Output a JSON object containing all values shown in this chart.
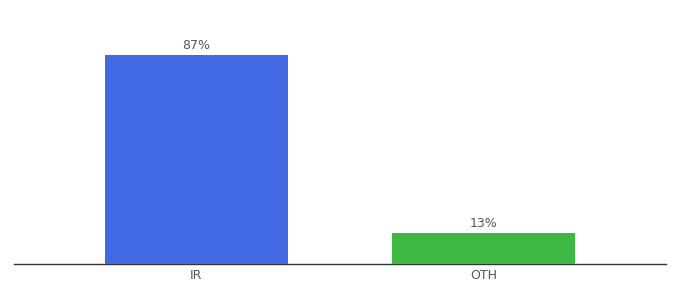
{
  "categories": [
    "IR",
    "OTH"
  ],
  "values": [
    87,
    13
  ],
  "bar_colors": [
    "#4169E1",
    "#3CB843"
  ],
  "label_texts": [
    "87%",
    "13%"
  ],
  "background_color": "#ffffff",
  "ylim": [
    0,
    100
  ],
  "bar_width": 0.28,
  "label_fontsize": 9,
  "tick_fontsize": 9,
  "x_positions": [
    0.28,
    0.72
  ]
}
